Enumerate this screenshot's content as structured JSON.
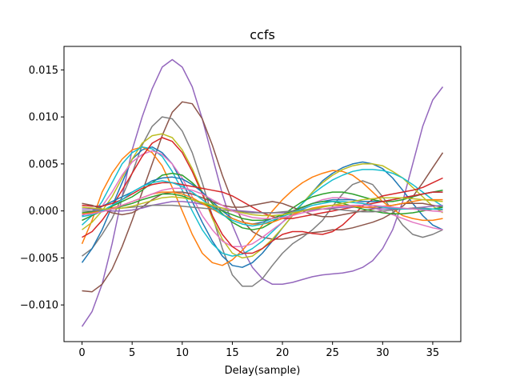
{
  "chart_data": {
    "type": "line",
    "title": "ccfs",
    "xlabel": "Delay(sample)",
    "ylabel": "",
    "xlim": [
      -1.8,
      37.8
    ],
    "ylim": [
      -0.0139,
      0.0175
    ],
    "grid": false,
    "legend": "none",
    "xticks": [
      0,
      5,
      10,
      15,
      20,
      25,
      30,
      35
    ],
    "xtick_labels": [
      "0",
      "5",
      "10",
      "15",
      "20",
      "25",
      "30",
      "35"
    ],
    "yticks": [
      -0.01,
      -0.005,
      0.0,
      0.005,
      0.01,
      0.015
    ],
    "ytick_labels": [
      "−0.010",
      "−0.005",
      "0.000",
      "0.005",
      "0.010",
      "0.015"
    ],
    "x": [
      0,
      1,
      2,
      3,
      4,
      5,
      6,
      7,
      8,
      9,
      10,
      11,
      12,
      13,
      14,
      15,
      16,
      17,
      18,
      19,
      20,
      21,
      22,
      23,
      24,
      25,
      26,
      27,
      28,
      29,
      30,
      31,
      32,
      33,
      34,
      35,
      36
    ],
    "series": [
      {
        "color": "#9467bd",
        "values": [
          -0.0123,
          -0.0107,
          -0.0078,
          -0.0035,
          0.0015,
          0.0065,
          0.01,
          0.013,
          0.0153,
          0.0161,
          0.0153,
          0.0132,
          0.0098,
          0.0058,
          0.0018,
          -0.0015,
          -0.004,
          -0.006,
          -0.0072,
          -0.0078,
          -0.0078,
          -0.0076,
          -0.0073,
          -0.007,
          -0.0068,
          -0.0067,
          -0.0066,
          -0.0064,
          -0.006,
          -0.0053,
          -0.004,
          -0.002,
          0.001,
          0.005,
          0.009,
          0.0118,
          0.0132
        ]
      },
      {
        "color": "#8c564b",
        "values": [
          -0.0085,
          -0.0086,
          -0.0078,
          -0.0062,
          -0.0038,
          -0.001,
          0.002,
          0.005,
          0.008,
          0.0105,
          0.0116,
          0.0114,
          0.0098,
          0.007,
          0.0038,
          0.001,
          -0.001,
          -0.0022,
          -0.0028,
          -0.003,
          -0.003,
          -0.0028,
          -0.0025,
          -0.0023,
          -0.0022,
          -0.002,
          -0.002,
          -0.0018,
          -0.0015,
          -0.0012,
          -0.0008,
          -0.0002,
          0.0005,
          0.0015,
          0.003,
          0.0046,
          0.0062
        ]
      },
      {
        "color": "#7f7f7f",
        "values": [
          -0.0048,
          -0.004,
          -0.0025,
          -0.0008,
          0.0015,
          0.004,
          0.007,
          0.009,
          0.01,
          0.0098,
          0.0085,
          0.0062,
          0.003,
          -0.0005,
          -0.004,
          -0.0068,
          -0.008,
          -0.008,
          -0.0072,
          -0.0058,
          -0.0045,
          -0.0035,
          -0.0028,
          -0.002,
          -0.001,
          0.0005,
          0.0018,
          0.0028,
          0.0032,
          0.0028,
          0.0015,
          0.0,
          -0.0015,
          -0.0025,
          -0.0028,
          -0.0025,
          -0.002
        ]
      },
      {
        "color": "#1f77b4",
        "values": [
          -0.0055,
          -0.004,
          -0.002,
          0.0005,
          0.003,
          0.0055,
          0.0065,
          0.0068,
          0.0062,
          0.005,
          0.003,
          0.001,
          -0.0012,
          -0.0032,
          -0.0048,
          -0.0058,
          -0.006,
          -0.0055,
          -0.0045,
          -0.0032,
          -0.0018,
          -0.0005,
          0.0008,
          0.002,
          0.0032,
          0.004,
          0.0046,
          0.005,
          0.0052,
          0.005,
          0.0045,
          0.0035,
          0.0022,
          0.0008,
          -0.0005,
          -0.0015,
          -0.002
        ]
      },
      {
        "color": "#ff7f0e",
        "values": [
          -0.0035,
          -0.001,
          0.002,
          0.004,
          0.0055,
          0.0065,
          0.0068,
          0.0062,
          0.0048,
          0.0025,
          0.0,
          -0.0025,
          -0.0045,
          -0.0055,
          -0.0058,
          -0.0052,
          -0.0042,
          -0.003,
          -0.0015,
          0.0,
          0.0012,
          0.0022,
          0.003,
          0.0036,
          0.004,
          0.0043,
          0.0042,
          0.0038,
          0.003,
          0.002,
          0.001,
          0.0002,
          -0.0005,
          -0.0008,
          -0.001,
          -0.001,
          -0.0008
        ]
      },
      {
        "color": "#bcbd22",
        "values": [
          -0.002,
          -0.0012,
          0.0,
          0.0015,
          0.0035,
          0.0055,
          0.0072,
          0.008,
          0.0082,
          0.0078,
          0.0065,
          0.0045,
          0.002,
          -0.0008,
          -0.003,
          -0.0045,
          -0.005,
          -0.0048,
          -0.004,
          -0.003,
          -0.0018,
          -0.0005,
          0.0008,
          0.002,
          0.003,
          0.0038,
          0.0044,
          0.0048,
          0.005,
          0.005,
          0.0048,
          0.0042,
          0.0035,
          0.0025,
          0.0015,
          0.0005,
          -0.0002
        ]
      },
      {
        "color": "#17becf",
        "values": [
          -0.0015,
          -0.0005,
          0.001,
          0.003,
          0.005,
          0.0062,
          0.0068,
          0.0066,
          0.0058,
          0.0042,
          0.0022,
          0.0,
          -0.002,
          -0.0035,
          -0.0045,
          -0.0048,
          -0.0046,
          -0.004,
          -0.0032,
          -0.0022,
          -0.0012,
          -0.0002,
          0.0008,
          0.0018,
          0.0026,
          0.0033,
          0.0038,
          0.0042,
          0.0044,
          0.0044,
          0.0043,
          0.004,
          0.0035,
          0.0028,
          0.002,
          0.0012,
          0.0005
        ]
      },
      {
        "color": "#e377c2",
        "values": [
          -0.001,
          -0.0005,
          0.0005,
          0.002,
          0.0038,
          0.0052,
          0.006,
          0.0064,
          0.006,
          0.005,
          0.0035,
          0.0015,
          -0.0005,
          -0.002,
          -0.0032,
          -0.0038,
          -0.0038,
          -0.0035,
          -0.0028,
          -0.002,
          -0.0012,
          -0.0004,
          0.0003,
          0.0008,
          0.0012,
          0.0014,
          0.0014,
          0.0012,
          0.0008,
          0.0004,
          0.0,
          -0.0004,
          -0.0008,
          -0.0012,
          -0.0015,
          -0.0018,
          -0.002
        ]
      },
      {
        "color": "#d62728",
        "values": [
          -0.0028,
          -0.0022,
          -0.001,
          0.0005,
          0.0022,
          0.004,
          0.0058,
          0.0072,
          0.0078,
          0.0074,
          0.0062,
          0.0042,
          0.0018,
          -0.0005,
          -0.0025,
          -0.0038,
          -0.0045,
          -0.0045,
          -0.004,
          -0.0032,
          -0.0025,
          -0.0022,
          -0.0022,
          -0.0024,
          -0.0025,
          -0.0022,
          -0.0015,
          -0.0005,
          0.0005,
          0.0012,
          0.0016,
          0.0018,
          0.002,
          0.0022,
          0.0025,
          0.003,
          0.0035
        ]
      },
      {
        "color": "#2ca02c",
        "values": [
          -0.001,
          -0.0005,
          0.0,
          0.0005,
          0.001,
          0.0015,
          0.0022,
          0.003,
          0.0038,
          0.004,
          0.0038,
          0.003,
          0.002,
          0.0008,
          -0.0003,
          -0.0012,
          -0.0018,
          -0.002,
          -0.0018,
          -0.0012,
          -0.0005,
          0.0003,
          0.001,
          0.0015,
          0.0018,
          0.002,
          0.002,
          0.0018,
          0.0015,
          0.0012,
          0.001,
          0.001,
          0.0012,
          0.0015,
          0.0018,
          0.002,
          0.0022
        ]
      },
      {
        "color": "#1f77b4",
        "values": [
          -0.0005,
          0.0,
          0.0005,
          0.001,
          0.0015,
          0.002,
          0.0026,
          0.0032,
          0.0035,
          0.0036,
          0.0034,
          0.0028,
          0.002,
          0.001,
          0.0,
          -0.0008,
          -0.0012,
          -0.0014,
          -0.0012,
          -0.0008,
          -0.0004,
          0.0,
          0.0004,
          0.0008,
          0.001,
          0.0012,
          0.0012,
          0.0012,
          0.001,
          0.001,
          0.001,
          0.0012,
          0.0014,
          0.0016,
          0.0018,
          0.002,
          0.002
        ]
      },
      {
        "color": "#d62728",
        "values": [
          0.0006,
          0.0005,
          0.0005,
          0.0008,
          0.0012,
          0.0018,
          0.0024,
          0.0028,
          0.003,
          0.003,
          0.0028,
          0.0026,
          0.0024,
          0.0022,
          0.002,
          0.0016,
          0.001,
          0.0004,
          -0.0002,
          -0.0006,
          -0.0008,
          -0.0008,
          -0.0006,
          -0.0004,
          -0.0002,
          0.0,
          0.0002,
          0.0004,
          0.0006,
          0.0008,
          0.001,
          0.0012,
          0.0014,
          0.0016,
          0.0018,
          0.002,
          0.002
        ]
      },
      {
        "color": "#8c564b",
        "values": [
          0.0008,
          0.0006,
          0.0002,
          -0.0002,
          -0.0004,
          -0.0002,
          0.0004,
          0.0012,
          0.0018,
          0.002,
          0.002,
          0.0018,
          0.0014,
          0.001,
          0.0006,
          0.0004,
          0.0004,
          0.0006,
          0.0008,
          0.001,
          0.0008,
          0.0004,
          0.0,
          -0.0004,
          -0.0006,
          -0.0006,
          -0.0004,
          -0.0002,
          0.0,
          0.0002,
          0.0004,
          0.0006,
          0.0008,
          0.0008,
          0.0008,
          0.0006,
          0.0004
        ]
      },
      {
        "color": "#9467bd",
        "values": [
          0.0002,
          0.0002,
          0.0001,
          0.0,
          0.0,
          0.0001,
          0.0003,
          0.0006,
          0.0008,
          0.001,
          0.001,
          0.0009,
          0.0007,
          0.0005,
          0.0003,
          0.0001,
          0.0,
          -0.0001,
          -0.0002,
          -0.0002,
          -0.0002,
          -0.0001,
          0.0,
          0.0001,
          0.0002,
          0.0003,
          0.0004,
          0.0004,
          0.0004,
          0.0003,
          0.0002,
          0.0002,
          0.0002,
          0.0003,
          0.0004,
          0.0005,
          0.0006
        ]
      },
      {
        "color": "#2ca02c",
        "values": [
          -0.0002,
          -0.0001,
          0.0,
          0.0002,
          0.0005,
          0.0008,
          0.0012,
          0.0015,
          0.0018,
          0.0018,
          0.0016,
          0.0012,
          0.0008,
          0.0004,
          0.0,
          -0.0004,
          -0.0008,
          -0.001,
          -0.001,
          -0.0008,
          -0.0004,
          0.0,
          0.0004,
          0.0008,
          0.001,
          0.001,
          0.0008,
          0.0005,
          0.0002,
          0.0,
          -0.0002,
          -0.0003,
          -0.0003,
          -0.0002,
          0.0,
          0.0002,
          0.0004
        ]
      },
      {
        "color": "#ff7f0e",
        "values": [
          -0.0003,
          -0.0002,
          0.0,
          0.0003,
          0.0006,
          0.001,
          0.0014,
          0.0018,
          0.002,
          0.002,
          0.0018,
          0.0014,
          0.0008,
          0.0002,
          -0.0004,
          -0.0008,
          -0.0012,
          -0.0014,
          -0.0014,
          -0.0012,
          -0.0008,
          -0.0004,
          0.0,
          0.0003,
          0.0005,
          0.0006,
          0.0006,
          0.0005,
          0.0004,
          0.0004,
          0.0005,
          0.0006,
          0.0008,
          0.001,
          0.0012,
          0.0012,
          0.0012
        ]
      },
      {
        "color": "#7f7f7f",
        "values": [
          0.0,
          0.0,
          0.0001,
          0.0002,
          0.0003,
          0.0004,
          0.0005,
          0.0006,
          0.0006,
          0.0006,
          0.0005,
          0.0004,
          0.0003,
          0.0002,
          0.0001,
          0.0,
          -0.0001,
          -0.0002,
          -0.0002,
          -0.0002,
          -0.0001,
          0.0,
          0.0001,
          0.0002,
          0.0002,
          0.0002,
          0.0001,
          0.0,
          -0.0001,
          -0.0001,
          0.0,
          0.0001,
          0.0002,
          0.0003,
          0.0003,
          0.0002,
          0.0001
        ]
      },
      {
        "color": "#17becf",
        "values": [
          -0.0006,
          -0.0004,
          0.0,
          0.0006,
          0.0012,
          0.002,
          0.0026,
          0.003,
          0.0032,
          0.003,
          0.0026,
          0.002,
          0.0012,
          0.0004,
          -0.0004,
          -0.001,
          -0.0014,
          -0.0016,
          -0.0014,
          -0.001,
          -0.0006,
          -0.0002,
          0.0002,
          0.0006,
          0.0008,
          0.001,
          0.001,
          0.0009,
          0.0008,
          0.0006,
          0.0004,
          0.0003,
          0.0002,
          0.0002,
          0.0002,
          0.0002,
          0.0002
        ]
      },
      {
        "color": "#bcbd22",
        "values": [
          0.0004,
          0.0003,
          0.0002,
          0.0002,
          0.0003,
          0.0005,
          0.0008,
          0.0011,
          0.0014,
          0.0015,
          0.0014,
          0.0012,
          0.0009,
          0.0006,
          0.0003,
          0.0,
          -0.0002,
          -0.0004,
          -0.0005,
          -0.0005,
          -0.0004,
          -0.0002,
          0.0,
          0.0002,
          0.0004,
          0.0006,
          0.0008,
          0.001,
          0.0012,
          0.0013,
          0.0014,
          0.0014,
          0.0014,
          0.0013,
          0.0012,
          0.0011,
          0.001
        ]
      },
      {
        "color": "#e377c2",
        "values": [
          -0.0004,
          -0.0003,
          -0.0001,
          0.0002,
          0.0006,
          0.001,
          0.0014,
          0.0018,
          0.0022,
          0.0024,
          0.0024,
          0.0022,
          0.0018,
          0.0012,
          0.0006,
          0.0,
          -0.0004,
          -0.0007,
          -0.0008,
          -0.0008,
          -0.0007,
          -0.0005,
          -0.0002,
          0.0,
          0.0002,
          0.0004,
          0.0005,
          0.0006,
          0.0006,
          0.0006,
          0.0005,
          0.0004,
          0.0003,
          0.0002,
          0.0001,
          0.0,
          -0.0001
        ]
      }
    ]
  }
}
